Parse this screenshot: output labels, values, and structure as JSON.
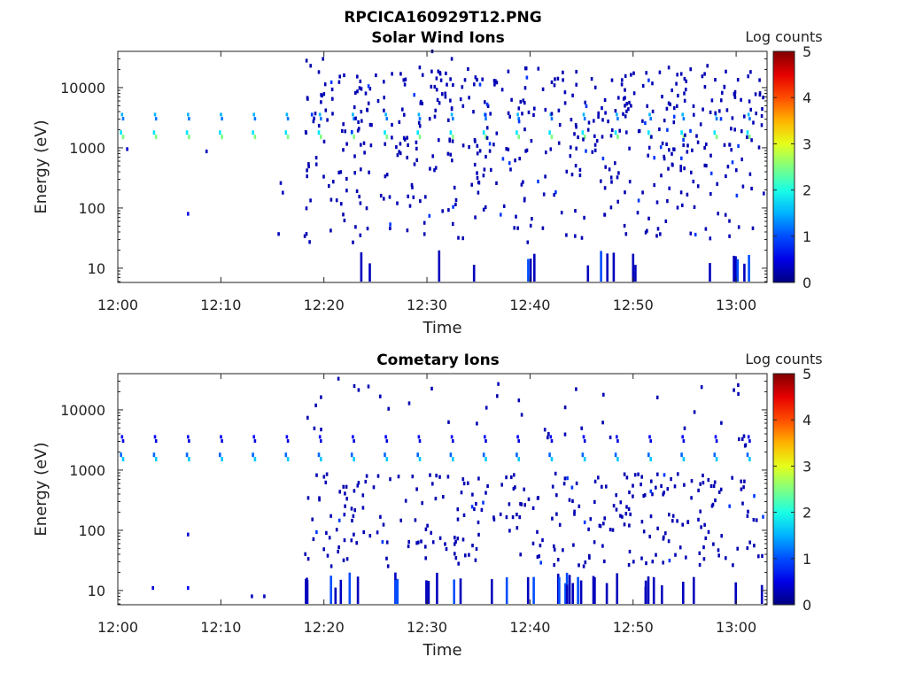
{
  "figure_title": "RPCICA160929T12.PNG",
  "chart_data": [
    {
      "type": "heatmap",
      "title": "Solar Wind Ions",
      "xlabel": "Time",
      "ylabel": "Energy (eV)",
      "x_ticks": [
        "12:00",
        "12:10",
        "12:20",
        "12:30",
        "12:40",
        "12:50",
        "13:00"
      ],
      "x_tick_minutes": [
        0,
        10,
        20,
        30,
        40,
        50,
        60
      ],
      "xlim_minutes": [
        0,
        63
      ],
      "y_scale": "log",
      "ylim": [
        5.8,
        40000
      ],
      "y_ticks": [
        "10",
        "100",
        "1000",
        "10000"
      ],
      "y_tick_values": [
        10,
        100,
        1000,
        10000
      ],
      "colorbar": {
        "label": "Log counts",
        "ticks": [
          "0",
          "1",
          "2",
          "3",
          "4",
          "5"
        ],
        "range": [
          0,
          5
        ],
        "colormap": "jet"
      },
      "data_gap_before_minutes": 18,
      "beam_times_minutes": [
        0.3,
        3.5,
        6.7,
        9.9,
        13.1,
        16.3,
        19.5,
        22.7,
        25.9,
        29.1,
        32.3,
        35.5,
        38.7,
        41.9,
        45.1,
        48.3,
        51.5,
        54.7,
        57.9,
        61.1
      ],
      "beam_main_energy_eV": 1600,
      "beam_main_log_counts": 2.5,
      "beam_secondary_energy_eV": 3300,
      "beam_secondary_log_counts": 1.5,
      "scattered_counts": [
        {
          "t": 0.8,
          "e": 950,
          "c": 0.4
        },
        {
          "t": 6.7,
          "e": 80,
          "c": 0.5
        },
        {
          "t": 8.5,
          "e": 870,
          "c": 0.3
        },
        {
          "t": 15.5,
          "e": 37,
          "c": 0.3
        },
        {
          "t": 15.7,
          "e": 260,
          "c": 0.3
        },
        {
          "t": 15.9,
          "e": 180,
          "c": 0.3
        },
        {
          "t": 18.2,
          "e": 28000,
          "c": 0.2
        },
        {
          "t": 18.6,
          "e": 23000,
          "c": 0.2
        },
        {
          "t": 19.8,
          "e": 30000,
          "c": 0.2
        },
        {
          "t": 30.4,
          "e": 40000,
          "c": 0.2
        },
        {
          "t": 32.3,
          "e": 30000,
          "c": 0.2
        },
        {
          "t": 57.1,
          "e": 23000,
          "c": 0.2
        }
      ],
      "low_energy_counts_eV": 10
    },
    {
      "type": "heatmap",
      "title": "Cometary Ions",
      "xlabel": "Time",
      "ylabel": "Energy (eV)",
      "x_ticks": [
        "12:00",
        "12:10",
        "12:20",
        "12:30",
        "12:40",
        "12:50",
        "13:00"
      ],
      "x_tick_minutes": [
        0,
        10,
        20,
        30,
        40,
        50,
        60
      ],
      "xlim_minutes": [
        0,
        63
      ],
      "y_scale": "log",
      "ylim": [
        5.8,
        40000
      ],
      "y_ticks": [
        "10",
        "100",
        "1000",
        "10000"
      ],
      "y_tick_values": [
        10,
        100,
        1000,
        10000
      ],
      "colorbar": {
        "label": "Log counts",
        "ticks": [
          "0",
          "1",
          "2",
          "3",
          "4",
          "5"
        ],
        "range": [
          0,
          5
        ],
        "colormap": "jet"
      },
      "data_gap_before_minutes": 18,
      "beam_times_minutes": [
        0.3,
        3.5,
        6.7,
        9.9,
        13.1,
        16.3,
        19.5,
        22.7,
        25.9,
        29.1,
        32.3,
        35.5,
        38.7,
        41.9,
        45.1,
        48.3,
        51.5,
        54.7,
        57.9,
        61.1
      ],
      "beam_main_energy_eV": 1600,
      "beam_main_log_counts": 1.6,
      "beam_secondary_energy_eV": 3300,
      "beam_secondary_log_counts": 0.6,
      "scattered_counts": [
        {
          "t": 3.3,
          "e": 11,
          "c": 0.4
        },
        {
          "t": 6.7,
          "e": 85,
          "c": 0.4
        },
        {
          "t": 6.7,
          "e": 11,
          "c": 0.6
        },
        {
          "t": 12.9,
          "e": 8,
          "c": 0.3
        },
        {
          "t": 14.1,
          "e": 8,
          "c": 0.3
        },
        {
          "t": 21.3,
          "e": 33000,
          "c": 0.2
        },
        {
          "t": 36.7,
          "e": 17000,
          "c": 0.2
        },
        {
          "t": 43.3,
          "e": 11000,
          "c": 0.2
        }
      ],
      "low_energy_counts_eV": 10
    }
  ]
}
